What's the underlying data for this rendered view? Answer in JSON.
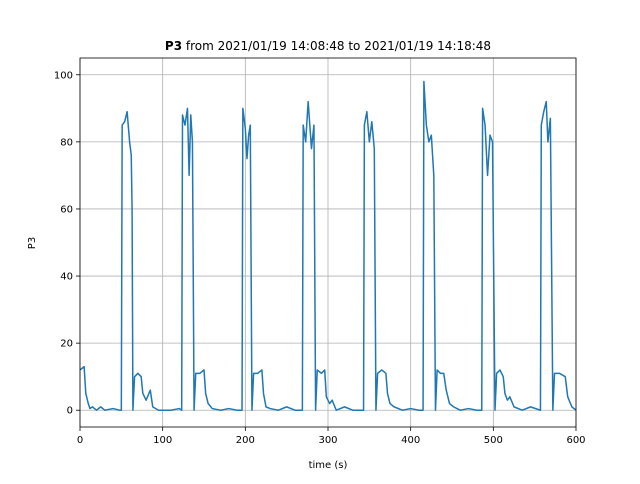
{
  "chart_data": {
    "type": "line",
    "title_name": "P3",
    "title": "from 2021/01/19 14:08:48 to 2021/01/19 14:18:48",
    "xlabel": "time (s)",
    "ylabel": "P3",
    "color": "#1f77b4",
    "grid": true,
    "xlim": [
      0,
      600
    ],
    "ylim": [
      -5,
      105
    ],
    "xticks": [
      0,
      100,
      200,
      300,
      400,
      500,
      600
    ],
    "yticks": [
      0,
      20,
      40,
      60,
      80,
      100
    ],
    "x": [
      0,
      5,
      7,
      10,
      12,
      15,
      20,
      25,
      30,
      40,
      48,
      50,
      51,
      54,
      57,
      60,
      62,
      63,
      64,
      66,
      70,
      74,
      76,
      80,
      85,
      88,
      95,
      110,
      120,
      123,
      124,
      127,
      130,
      132,
      134,
      136,
      138,
      140,
      145,
      150,
      152,
      155,
      160,
      170,
      180,
      190,
      196,
      197,
      200,
      202,
      204,
      206,
      208,
      210,
      215,
      220,
      222,
      225,
      230,
      240,
      250,
      260,
      269,
      270,
      273,
      276,
      280,
      283,
      285,
      287,
      292,
      296,
      298,
      302,
      305,
      310,
      320,
      330,
      343,
      344,
      347,
      350,
      353,
      356,
      358,
      360,
      365,
      370,
      372,
      375,
      380,
      390,
      400,
      410,
      415,
      416,
      419,
      422,
      425,
      428,
      430,
      432,
      436,
      440,
      443,
      447,
      452,
      460,
      470,
      480,
      486,
      487,
      490,
      493,
      496,
      499,
      502,
      504,
      508,
      512,
      514,
      517,
      520,
      525,
      535,
      545,
      557,
      558,
      561,
      564,
      566,
      569,
      572,
      574,
      580,
      587,
      590,
      595,
      600
    ],
    "values": [
      12,
      13,
      5,
      2,
      0.5,
      1,
      0,
      1,
      0,
      0.5,
      0,
      0,
      85,
      86,
      89,
      80,
      76,
      60,
      0,
      10,
      11,
      10,
      5,
      3,
      6,
      1,
      0,
      0,
      0.5,
      0,
      88,
      85,
      90,
      70,
      88,
      80,
      0,
      11,
      11,
      12,
      5,
      2,
      0.5,
      0,
      0.5,
      0,
      0,
      90,
      84,
      75,
      82,
      85,
      0,
      11,
      11,
      12,
      5,
      1,
      0.5,
      0,
      1,
      0,
      0,
      85,
      80,
      92,
      78,
      85,
      0,
      12,
      11,
      12,
      4,
      2,
      3,
      0,
      1,
      0,
      0,
      85,
      89,
      80,
      86,
      78,
      0,
      11,
      12,
      11,
      5,
      2,
      1,
      0,
      0.5,
      0,
      0,
      98,
      85,
      80,
      82,
      70,
      0,
      12,
      11,
      11,
      6,
      2,
      1,
      0,
      0.5,
      0,
      0,
      90,
      85,
      70,
      82,
      80,
      0,
      11,
      12,
      10,
      5,
      3,
      4,
      1,
      0,
      1,
      0,
      85,
      89,
      92,
      80,
      87,
      0,
      11,
      11,
      10,
      4,
      1,
      0
    ]
  }
}
